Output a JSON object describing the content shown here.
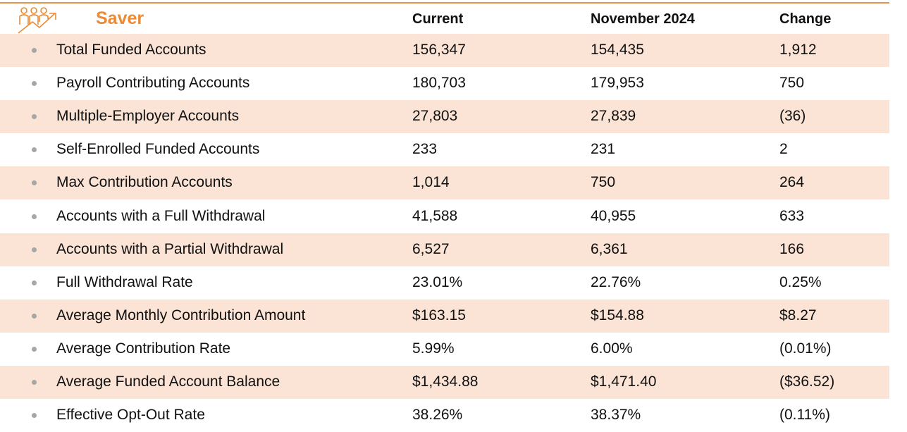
{
  "header": {
    "title": "Saver",
    "columns": [
      "Current",
      "November 2024",
      "Change"
    ]
  },
  "table": {
    "rows": [
      [
        "Total Funded Accounts",
        "156,347",
        "154,435",
        "1,912"
      ],
      [
        "Payroll Contributing Accounts",
        "180,703",
        "179,953",
        "750"
      ],
      [
        "Multiple-Employer Accounts",
        "27,803",
        "27,839",
        "(36)"
      ],
      [
        "Self-Enrolled Funded Accounts",
        "233",
        "231",
        "2"
      ],
      [
        "Max Contribution Accounts",
        "1,014",
        "750",
        "264"
      ],
      [
        "Accounts with a Full Withdrawal",
        "41,588",
        "40,955",
        "633"
      ],
      [
        "Accounts with a Partial Withdrawal",
        "6,527",
        "6,361",
        "166"
      ],
      [
        "Full Withdrawal Rate",
        "23.01%",
        "22.76%",
        "0.25%"
      ],
      [
        "Average Monthly Contribution Amount",
        "$163.15",
        "$154.88",
        "$8.27"
      ],
      [
        "Average Contribution Rate",
        "5.99%",
        "6.00%",
        "(0.01%)"
      ],
      [
        "Average Funded Account Balance",
        "$1,434.88",
        "$1,471.40",
        "($36.52)"
      ],
      [
        "Effective Opt-Out Rate",
        "38.26%",
        "38.37%",
        "(0.11%)"
      ]
    ]
  }
}
